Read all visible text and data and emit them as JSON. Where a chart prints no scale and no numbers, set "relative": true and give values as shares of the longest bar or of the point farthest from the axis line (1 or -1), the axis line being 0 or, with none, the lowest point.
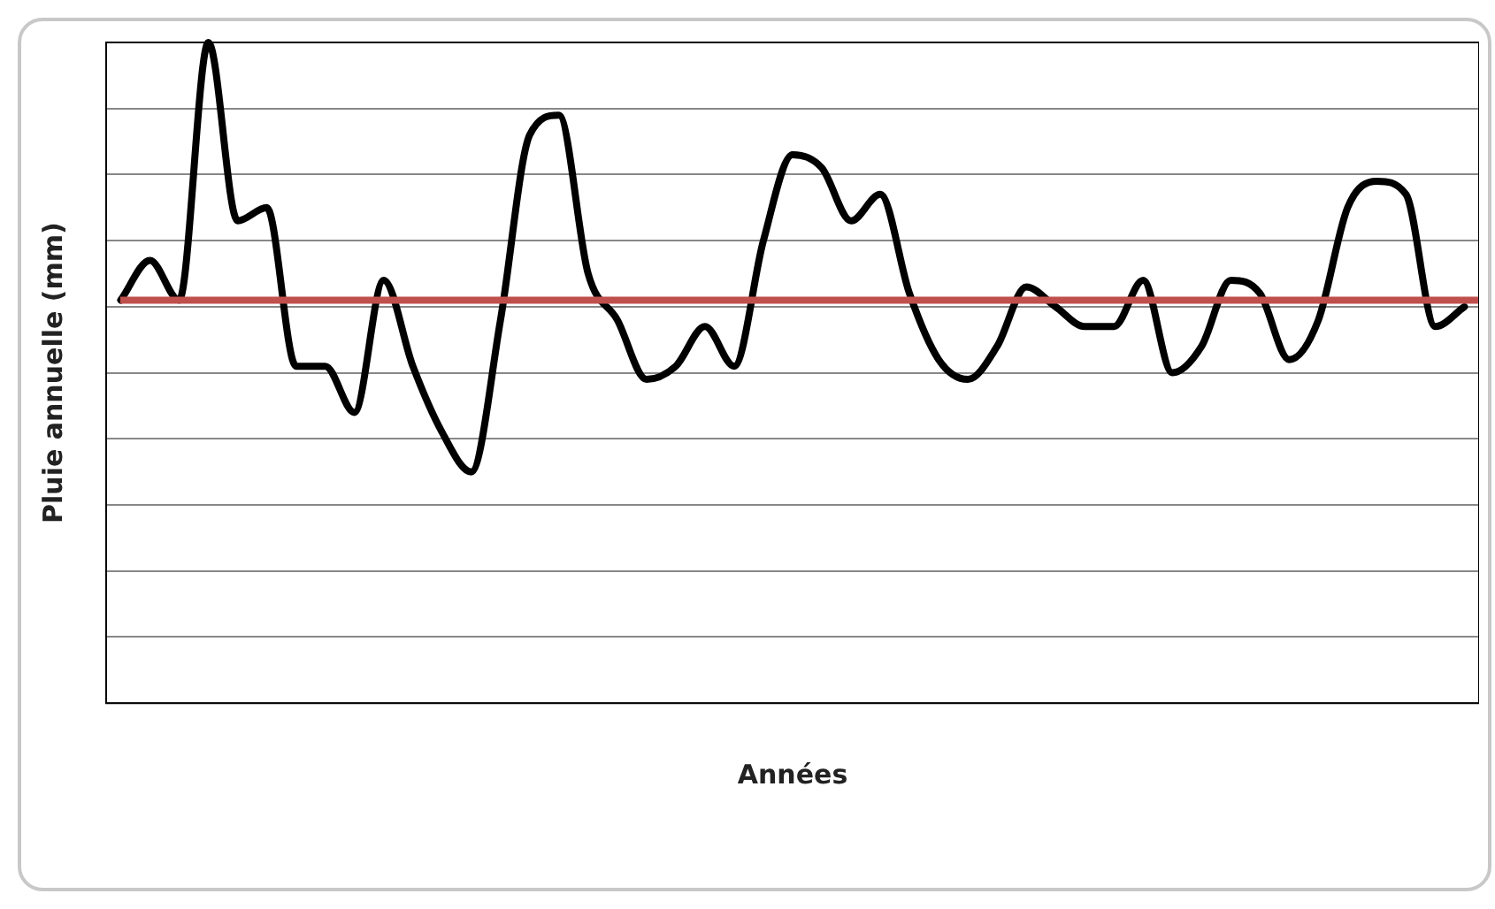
{
  "chart_data": {
    "type": "line",
    "xlabel": "Années",
    "ylabel": "Pluie annuelle (mm)",
    "relative": true,
    "grid": "y",
    "legend": false,
    "marker": "none",
    "line_style": "solid",
    "categories": [
      null,
      null,
      null,
      null,
      null,
      null,
      null,
      null,
      null,
      null,
      null,
      null,
      null,
      null,
      null,
      null,
      null,
      null,
      null,
      null,
      null,
      null,
      null,
      null,
      null,
      null,
      null,
      null,
      null,
      null,
      null,
      null,
      null,
      null,
      null,
      null,
      null,
      null,
      null,
      null,
      null,
      null,
      null,
      null,
      null,
      null,
      null
    ],
    "series": [
      {
        "color": "#000000",
        "values": [
          0.61,
          0.67,
          0.61,
          1.0,
          0.73,
          0.75,
          0.51,
          0.51,
          0.44,
          0.64,
          0.51,
          0.41,
          0.35,
          0.58,
          0.86,
          0.89,
          0.65,
          0.58,
          0.49,
          0.51,
          0.57,
          0.51,
          0.7,
          0.83,
          0.81,
          0.73,
          0.77,
          0.62,
          0.52,
          0.49,
          0.54,
          0.63,
          0.6,
          0.57,
          0.57,
          0.64,
          0.5,
          0.54,
          0.64,
          0.62,
          0.52,
          0.58,
          0.75,
          0.79,
          0.77,
          0.57,
          0.6
        ]
      }
    ],
    "ref_lines": [
      {
        "axis": "y",
        "value": 0.61,
        "color": "#c0504d",
        "line_style": "solid"
      }
    ]
  }
}
